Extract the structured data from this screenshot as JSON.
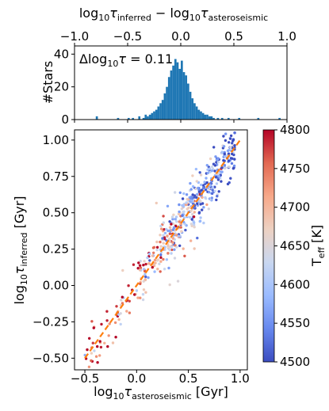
{
  "chart_data": [
    {
      "type": "bar",
      "name": "residual-histogram",
      "xlabel_main": "log",
      "xlabel_sub": "10",
      "xlabel_tau1": "τ",
      "xlabel_tau1_sub": "inferred",
      "xlabel_minus": " − log",
      "xlabel_sub2": "10",
      "xlabel_tau2": "τ",
      "xlabel_tau2_sub": "asteroseismic",
      "ylabel": "#Stars",
      "xlim": [
        -1.0,
        1.0
      ],
      "ylim": [
        0,
        45
      ],
      "xticks": [
        -1.0,
        -0.5,
        0.0,
        0.5,
        1.0
      ],
      "xtick_labels": [
        "−1.0",
        "−0.5",
        "0.0",
        "0.5",
        "1.0"
      ],
      "yticks": [
        0,
        20,
        40
      ],
      "ytick_labels": [
        "0",
        "20",
        "40"
      ],
      "annotation": "Δlog₁₀τ = 0.11",
      "bar_color": "#1f77b4",
      "bin_centers": [
        -0.79,
        -0.59,
        -0.49,
        -0.45,
        -0.39,
        -0.35,
        -0.33,
        -0.31,
        -0.29,
        -0.27,
        -0.25,
        -0.23,
        -0.21,
        -0.19,
        -0.17,
        -0.15,
        -0.13,
        -0.11,
        -0.09,
        -0.07,
        -0.05,
        -0.03,
        -0.01,
        0.01,
        0.03,
        0.05,
        0.07,
        0.09,
        0.11,
        0.13,
        0.15,
        0.17,
        0.19,
        0.21,
        0.23,
        0.25,
        0.27,
        0.29,
        0.31,
        0.35,
        0.39,
        0.45,
        0.55,
        0.73,
        0.93
      ],
      "counts": [
        2,
        1,
        1,
        1,
        2,
        1,
        3,
        2,
        3,
        4,
        5,
        6,
        8,
        10,
        12,
        16,
        20,
        26,
        30,
        33,
        37,
        35,
        31,
        36,
        29,
        27,
        22,
        17,
        13,
        10,
        8,
        6,
        5,
        4,
        3,
        3,
        2,
        2,
        1,
        1,
        1,
        1,
        1,
        1,
        1
      ]
    },
    {
      "type": "scatter",
      "name": "inferred-vs-asteroseismic",
      "xlabel_main": "log",
      "xlabel_sub": "10",
      "xlabel_tau": "τ",
      "xlabel_tau_sub": "asteroseismic",
      "xlabel_unit": " [Gyr]",
      "ylabel_main": "log",
      "ylabel_sub": "10",
      "ylabel_tau": "τ",
      "ylabel_tau_sub": "inferred",
      "ylabel_unit": " [Gyr]",
      "xlim": [
        -0.6,
        1.07
      ],
      "ylim": [
        -0.58,
        1.07
      ],
      "xticks": [
        -0.5,
        0.0,
        0.5,
        1.0
      ],
      "xtick_labels": [
        "−0.5",
        "0.0",
        "0.5",
        "1.0"
      ],
      "yticks": [
        -0.5,
        -0.25,
        0.0,
        0.25,
        0.5,
        0.75,
        1.0
      ],
      "ytick_labels": [
        "−0.50",
        "−0.25",
        "0.00",
        "0.25",
        "0.50",
        "0.75",
        "1.00"
      ],
      "one_to_one_line": {
        "x": [
          -0.5,
          1.0
        ],
        "y": [
          -0.5,
          1.0
        ],
        "color": "#ff7f0e",
        "style": "dashed"
      },
      "colorbar": {
        "label_main": "T",
        "label_sub": "eff",
        "label_unit": " [K]",
        "range": [
          4500,
          4800
        ],
        "ticks": [
          4500,
          4550,
          4600,
          4650,
          4700,
          4750,
          4800
        ],
        "tick_labels": [
          "4500",
          "4550",
          "4600",
          "4650",
          "4700",
          "4750",
          "4800"
        ],
        "colormap": [
          "#3b4cc0",
          "#6788ee",
          "#9abbff",
          "#c9d7f0",
          "#edd1c2",
          "#f7a889",
          "#e26952",
          "#b40426"
        ]
      },
      "n_points": 520
    }
  ]
}
